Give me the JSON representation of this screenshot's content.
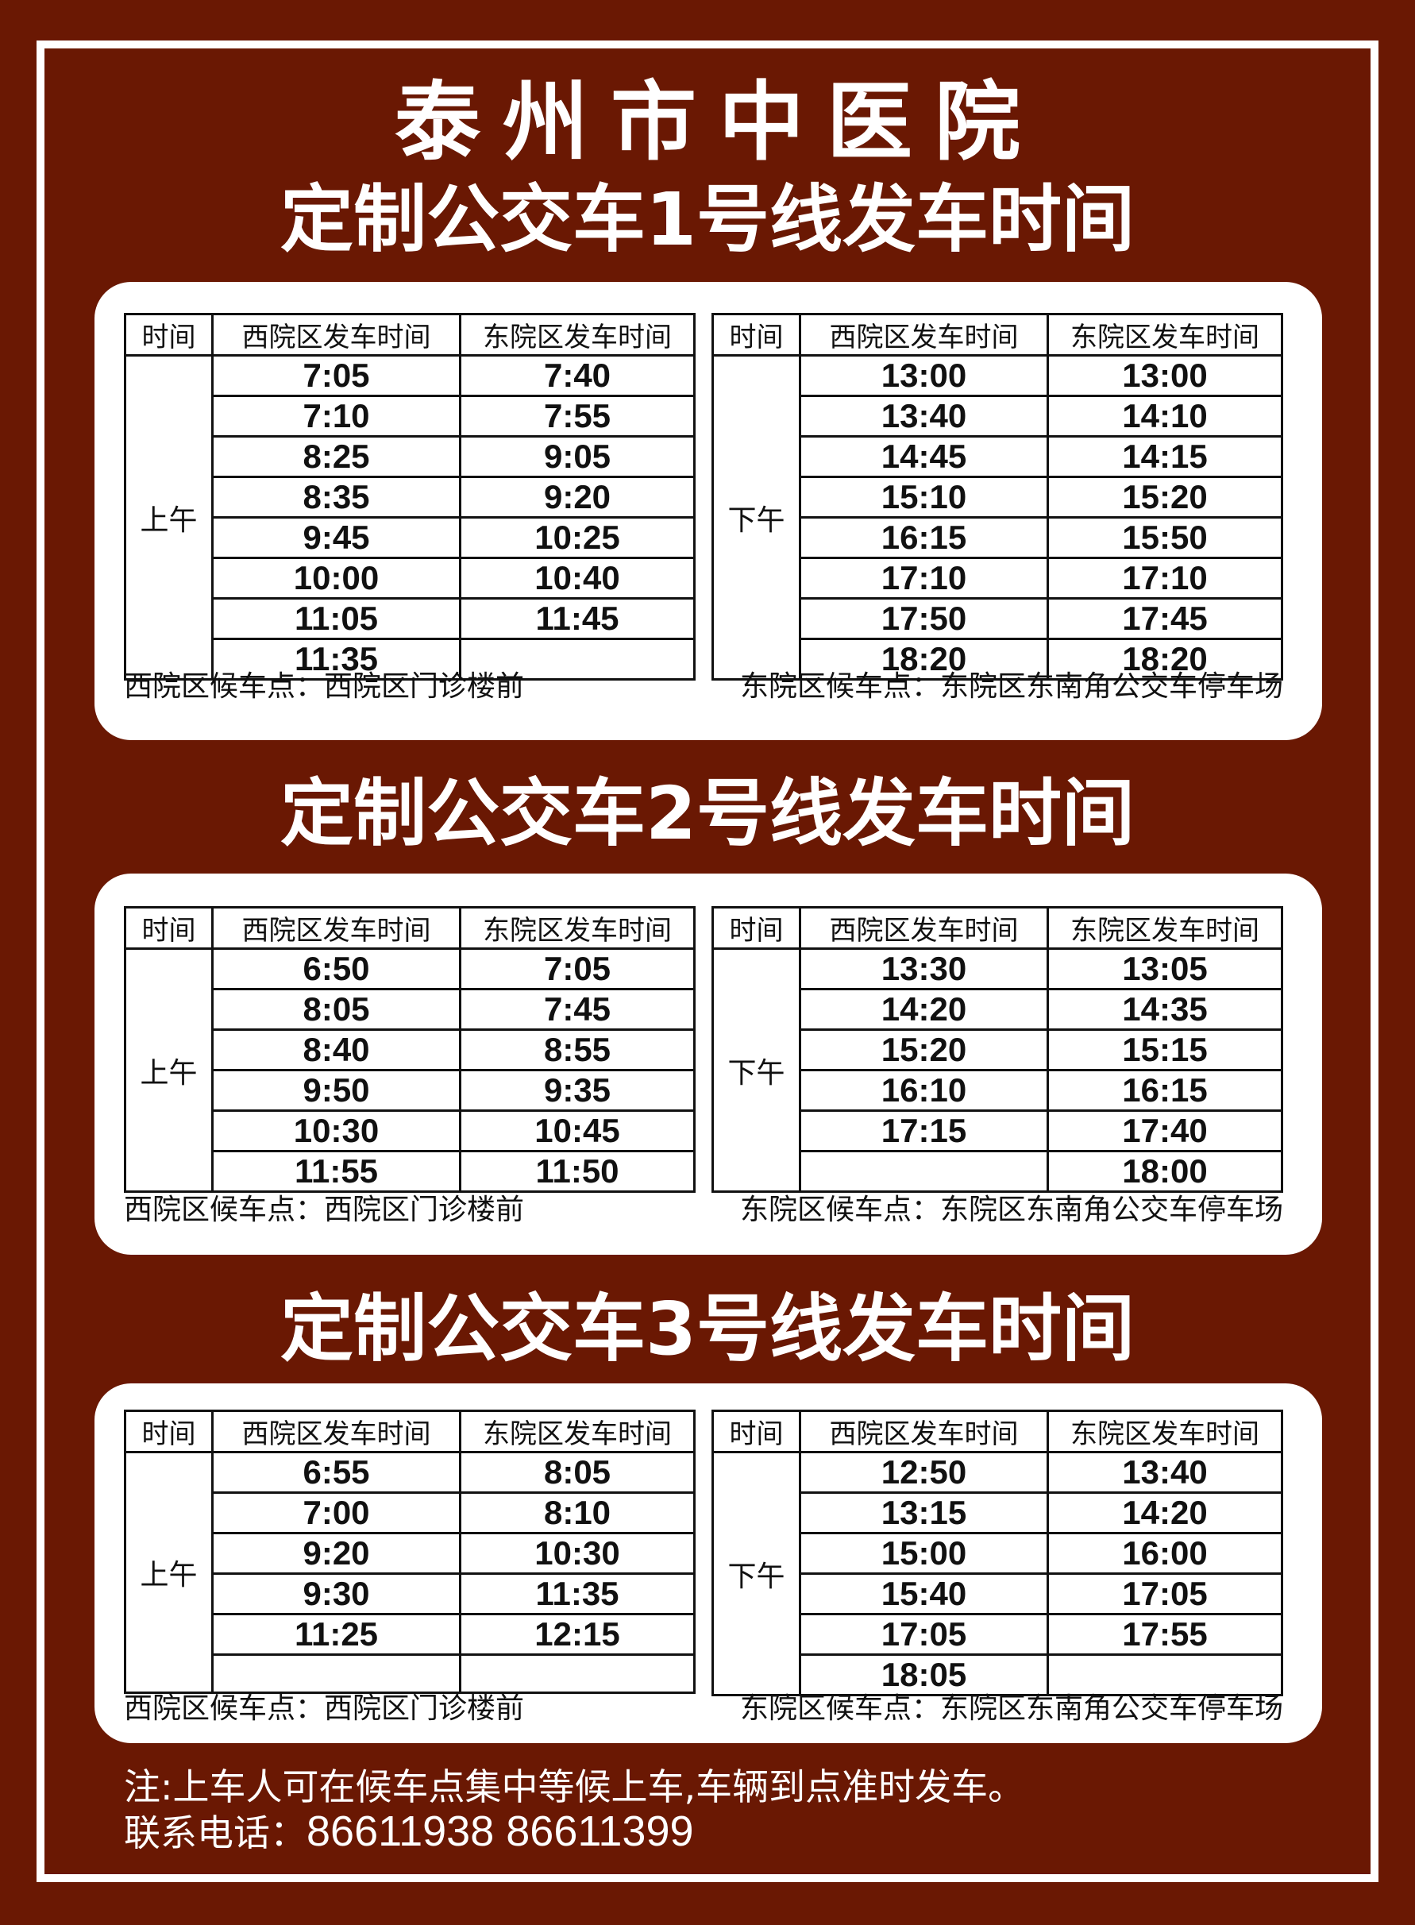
{
  "hospital_title": "泰州市中医院",
  "headers": {
    "time": "时间",
    "west": "西院区发车时间",
    "east": "东院区发车时间"
  },
  "periods": {
    "morning": "上午",
    "afternoon": "下午"
  },
  "stops": {
    "west": "西院区候车点：西院区门诊楼前",
    "east": "东院区候车点：东院区东南角公交车停车场"
  },
  "routes": [
    {
      "title": "定制公交车1号线发车时间",
      "morning": [
        [
          "7:05",
          "7:40"
        ],
        [
          "7:10",
          "7:55"
        ],
        [
          "8:25",
          "9:05"
        ],
        [
          "8:35",
          "9:20"
        ],
        [
          "9:45",
          "10:25"
        ],
        [
          "10:00",
          "10:40"
        ],
        [
          "11:05",
          "11:45"
        ],
        [
          "11:35",
          ""
        ]
      ],
      "afternoon": [
        [
          "13:00",
          "13:00"
        ],
        [
          "13:40",
          "14:10"
        ],
        [
          "14:45",
          "14:15"
        ],
        [
          "15:10",
          "15:20"
        ],
        [
          "16:15",
          "15:50"
        ],
        [
          "17:10",
          "17:10"
        ],
        [
          "17:50",
          "17:45"
        ],
        [
          "18:20",
          "18:20"
        ]
      ]
    },
    {
      "title": "定制公交车2号线发车时间",
      "morning": [
        [
          "6:50",
          "7:05"
        ],
        [
          "8:05",
          "7:45"
        ],
        [
          "8:40",
          "8:55"
        ],
        [
          "9:50",
          "9:35"
        ],
        [
          "10:30",
          "10:45"
        ],
        [
          "11:55",
          "11:50"
        ]
      ],
      "afternoon": [
        [
          "13:30",
          "13:05"
        ],
        [
          "14:20",
          "14:35"
        ],
        [
          "15:20",
          "15:15"
        ],
        [
          "16:10",
          "16:15"
        ],
        [
          "17:15",
          "17:40"
        ],
        [
          "",
          "18:00"
        ]
      ]
    },
    {
      "title": "定制公交车3号线发车时间",
      "morning": [
        [
          "6:55",
          "8:05"
        ],
        [
          "7:00",
          "8:10"
        ],
        [
          "9:20",
          "10:30"
        ],
        [
          "9:30",
          "11:35"
        ],
        [
          "11:25",
          "12:15"
        ],
        [
          "",
          ""
        ]
      ],
      "afternoon": [
        [
          "12:50",
          "13:40"
        ],
        [
          "13:15",
          "14:20"
        ],
        [
          "15:00",
          "16:00"
        ],
        [
          "15:40",
          "17:05"
        ],
        [
          "17:05",
          "17:55"
        ],
        [
          "18:05",
          ""
        ]
      ]
    }
  ],
  "note": "注:上车人可在候车点集中等候上车,车辆到点准时发车。",
  "contact": {
    "label": "联系电话：",
    "phones": "86611938  86611399"
  },
  "colors": {
    "background": "#6a1803",
    "panel": "#ffffff",
    "text": "#111111"
  }
}
